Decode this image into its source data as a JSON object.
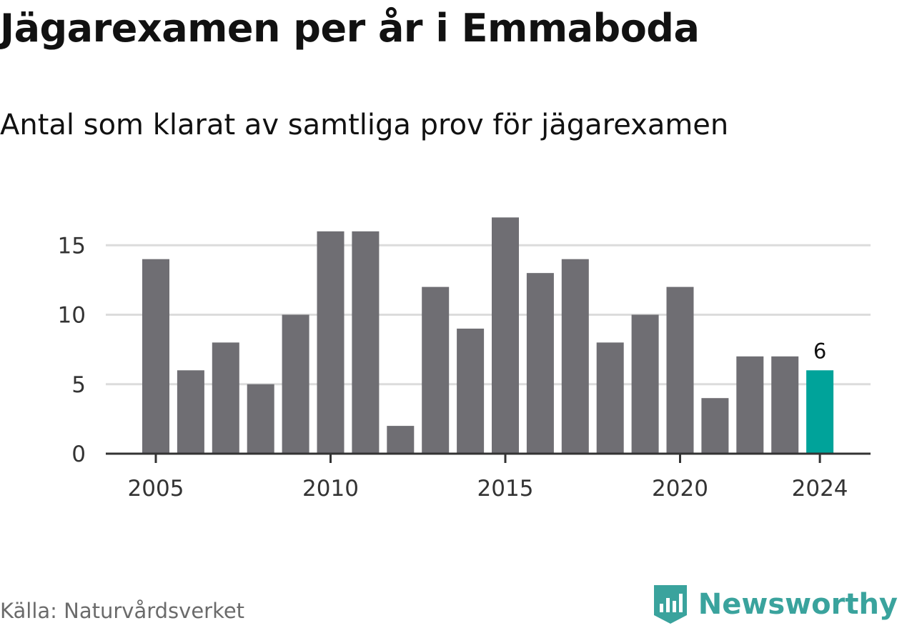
{
  "title": "Jägarexamen per år i Emmaboda",
  "subtitle": "Antal som klarat av samtliga prov för jägarexamen",
  "source": "Källa: Naturvårdsverket",
  "brand": "Newsworthy",
  "colors": {
    "bar": "#6f6e73",
    "highlight": "#00a39a",
    "grid": "#dcdcdc",
    "axis": "#333333",
    "tick_text": "#333333",
    "brand": "#3aa39d",
    "source_text": "#6b6b6b"
  },
  "chart_data": {
    "type": "bar",
    "title": "Jägarexamen per år i Emmaboda",
    "subtitle": "Antal som klarat av samtliga prov för jägarexamen",
    "x": [
      2005,
      2006,
      2007,
      2008,
      2009,
      2010,
      2011,
      2012,
      2013,
      2014,
      2015,
      2016,
      2017,
      2018,
      2019,
      2020,
      2021,
      2022,
      2023,
      2024
    ],
    "values": [
      14,
      6,
      8,
      5,
      10,
      16,
      16,
      2,
      12,
      9,
      17,
      13,
      14,
      8,
      10,
      12,
      4,
      7,
      7,
      6
    ],
    "highlight_x": 2024,
    "data_labels": [
      {
        "x": 2024,
        "label": "6"
      }
    ],
    "x_ticks": [
      2005,
      2010,
      2015,
      2020,
      2024
    ],
    "y_ticks": [
      0,
      5,
      10,
      15
    ],
    "ylim": [
      0,
      17
    ],
    "grid": true,
    "xlabel": "",
    "ylabel": ""
  }
}
